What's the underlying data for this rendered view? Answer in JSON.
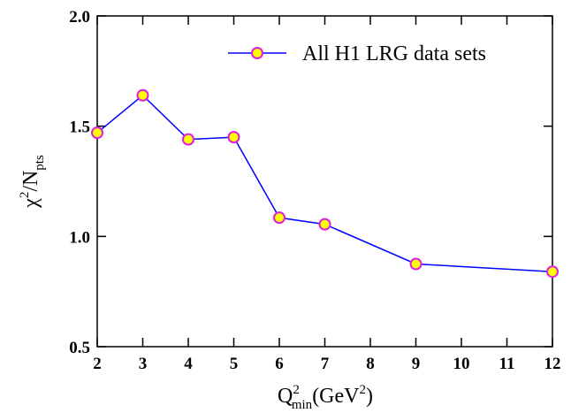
{
  "chart_data": {
    "type": "line",
    "x": [
      2,
      3,
      4,
      5,
      6,
      7,
      9,
      12
    ],
    "series": [
      {
        "name": "All H1 LRG data sets",
        "color": "#0000ff",
        "marker_fill": "#ffff00",
        "marker_edge": "#e01ee0",
        "values": [
          1.47,
          1.64,
          1.44,
          1.45,
          1.085,
          1.055,
          0.875,
          0.84
        ]
      }
    ],
    "xlim": [
      2,
      12
    ],
    "xticks": [
      2,
      3,
      4,
      5,
      6,
      7,
      8,
      9,
      10,
      11,
      12
    ],
    "ylim": [
      0.5,
      2.0
    ],
    "yticks": [
      0.5,
      {
        "value": 1.0,
        "label": "1.0"
      },
      1.5,
      {
        "value": 2.0,
        "label": "2.0"
      }
    ],
    "xlabel_parts": [
      "Q",
      "2",
      "min",
      "(GeV",
      "2",
      ")"
    ],
    "ylabel_parts": [
      "χ",
      "2",
      "/N",
      "pts"
    ],
    "legend": "upper right",
    "grid": false
  }
}
